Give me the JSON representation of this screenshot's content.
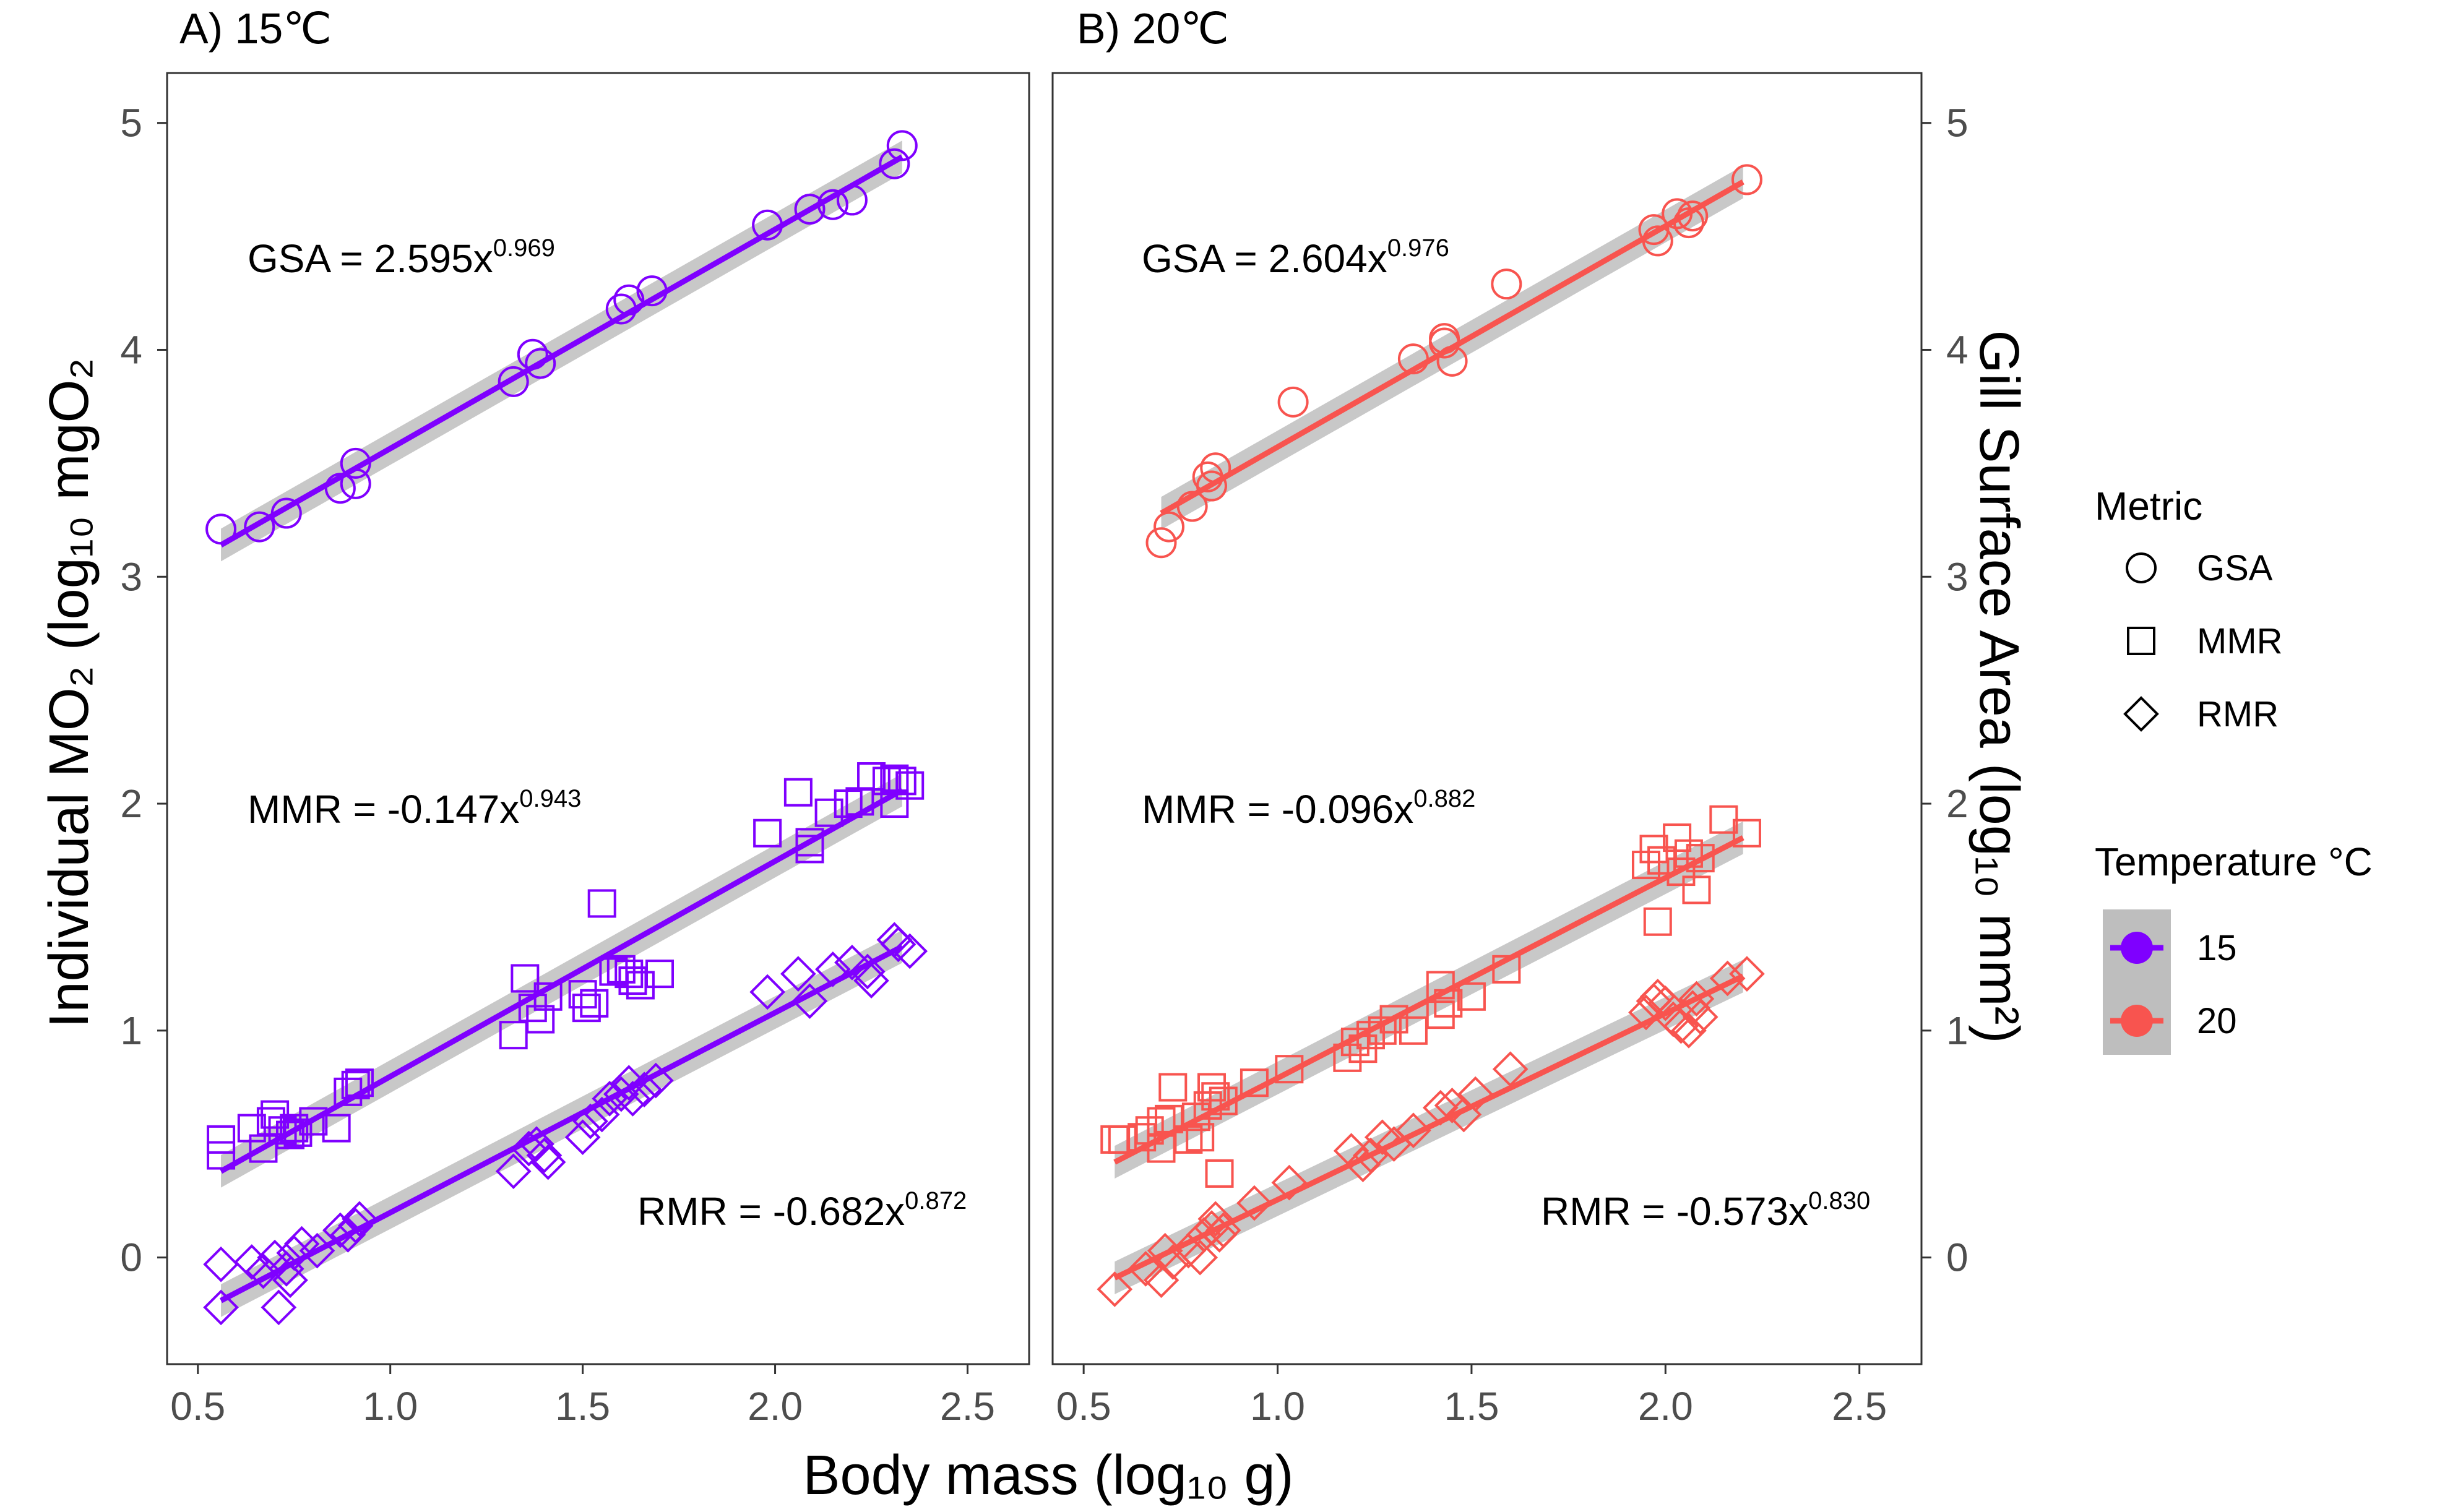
{
  "colors": {
    "t15": "#7F00FF",
    "t20": "#F8544F",
    "band": "#BEBEBE",
    "frame": "#333333"
  },
  "chart_data": {
    "type": "scatter",
    "xlabel": "Body mass (log₁₀ g)",
    "ylabel_left": "Individual MO₂ (log₁₀ mgO₂",
    "ylabel_right": "Gill Surface Area (log₁₀ mm²)",
    "xlim": [
      0.42,
      2.66
    ],
    "ylim": [
      -0.47,
      5.22
    ],
    "x_ticks": [
      "0.5",
      "1.0",
      "1.5",
      "2.0",
      "2.5"
    ],
    "y_ticks": [
      "0",
      "1",
      "2",
      "3",
      "4",
      "5"
    ],
    "legend": {
      "metric_title": "Metric",
      "metrics": [
        "GSA",
        "MMR",
        "RMR"
      ],
      "temp_title": "Temperature °C",
      "temps": [
        "15",
        "20"
      ]
    },
    "panels": [
      {
        "label": "A) 15℃",
        "temperature": "15",
        "equations": [
          {
            "base": "GSA = 2.595x",
            "exp": "0.969"
          },
          {
            "base": "MMR = -0.147x",
            "exp": "0.943"
          },
          {
            "base": "RMR = -0.682x",
            "exp": "0.872"
          }
        ],
        "series": [
          {
            "name": "GSA",
            "fit": {
              "x0": 0.56,
              "y0": 3.14,
              "x1": 2.33,
              "y1": 4.85
            },
            "points": [
              [
                0.56,
                3.21
              ],
              [
                0.66,
                3.22
              ],
              [
                0.73,
                3.28
              ],
              [
                0.87,
                3.39
              ],
              [
                0.91,
                3.41
              ],
              [
                0.91,
                3.5
              ],
              [
                1.32,
                3.86
              ],
              [
                1.37,
                3.98
              ],
              [
                1.39,
                3.94
              ],
              [
                1.6,
                4.18
              ],
              [
                1.62,
                4.22
              ],
              [
                1.68,
                4.26
              ],
              [
                1.98,
                4.55
              ],
              [
                2.09,
                4.62
              ],
              [
                2.15,
                4.64
              ],
              [
                2.2,
                4.66
              ],
              [
                2.31,
                4.82
              ],
              [
                2.33,
                4.9
              ]
            ]
          },
          {
            "name": "MMR",
            "fit": {
              "x0": 0.56,
              "y0": 0.38,
              "x1": 2.33,
              "y1": 2.06
            },
            "points": [
              [
                0.56,
                0.45
              ],
              [
                0.56,
                0.52
              ],
              [
                0.64,
                0.57
              ],
              [
                0.67,
                0.48
              ],
              [
                0.69,
                0.6
              ],
              [
                0.7,
                0.63
              ],
              [
                0.72,
                0.56
              ],
              [
                0.74,
                0.54
              ],
              [
                0.75,
                0.57
              ],
              [
                0.76,
                0.55
              ],
              [
                0.8,
                0.6
              ],
              [
                0.86,
                0.57
              ],
              [
                0.89,
                0.73
              ],
              [
                0.91,
                0.76
              ],
              [
                0.92,
                0.77
              ],
              [
                1.32,
                0.98
              ],
              [
                1.35,
                1.23
              ],
              [
                1.37,
                1.1
              ],
              [
                1.39,
                1.05
              ],
              [
                1.41,
                1.15
              ],
              [
                1.5,
                1.16
              ],
              [
                1.51,
                1.1
              ],
              [
                1.53,
                1.12
              ],
              [
                1.55,
                1.56
              ],
              [
                1.58,
                1.26
              ],
              [
                1.6,
                1.27
              ],
              [
                1.62,
                1.25
              ],
              [
                1.63,
                1.22
              ],
              [
                1.65,
                1.2
              ],
              [
                1.7,
                1.25
              ],
              [
                1.98,
                1.87
              ],
              [
                2.06,
                2.05
              ],
              [
                2.09,
                1.8
              ],
              [
                2.09,
                1.83
              ],
              [
                2.14,
                1.96
              ],
              [
                2.19,
                2.0
              ],
              [
                2.22,
                2.01
              ],
              [
                2.25,
                2.12
              ],
              [
                2.29,
                2.1
              ],
              [
                2.31,
                2.11
              ],
              [
                2.31,
                2.0
              ],
              [
                2.33,
                2.1
              ],
              [
                2.35,
                2.08
              ]
            ]
          },
          {
            "name": "RMR",
            "fit": {
              "x0": 0.56,
              "y0": -0.19,
              "x1": 2.33,
              "y1": 1.37
            },
            "points": [
              [
                0.56,
                -0.22
              ],
              [
                0.56,
                -0.03
              ],
              [
                0.64,
                -0.02
              ],
              [
                0.67,
                -0.06
              ],
              [
                0.7,
                0.0
              ],
              [
                0.71,
                -0.22
              ],
              [
                0.73,
                -0.05
              ],
              [
                0.74,
                -0.1
              ],
              [
                0.75,
                0.02
              ],
              [
                0.77,
                0.06
              ],
              [
                0.81,
                0.03
              ],
              [
                0.87,
                0.12
              ],
              [
                0.89,
                0.1
              ],
              [
                0.91,
                0.14
              ],
              [
                0.92,
                0.17
              ],
              [
                1.32,
                0.38
              ],
              [
                1.36,
                0.48
              ],
              [
                1.38,
                0.5
              ],
              [
                1.4,
                0.45
              ],
              [
                1.41,
                0.42
              ],
              [
                1.5,
                0.53
              ],
              [
                1.52,
                0.6
              ],
              [
                1.55,
                0.63
              ],
              [
                1.57,
                0.7
              ],
              [
                1.6,
                0.72
              ],
              [
                1.62,
                0.77
              ],
              [
                1.63,
                0.7
              ],
              [
                1.66,
                0.74
              ],
              [
                1.69,
                0.78
              ],
              [
                1.98,
                1.17
              ],
              [
                2.06,
                1.25
              ],
              [
                2.09,
                1.13
              ],
              [
                2.15,
                1.27
              ],
              [
                2.2,
                1.3
              ],
              [
                2.24,
                1.26
              ],
              [
                2.25,
                1.22
              ],
              [
                2.31,
                1.4
              ],
              [
                2.32,
                1.38
              ],
              [
                2.35,
                1.35
              ]
            ]
          }
        ]
      },
      {
        "label": "B) 20℃",
        "temperature": "20",
        "equations": [
          {
            "base": "GSA = 2.604x",
            "exp": "0.976"
          },
          {
            "base": "MMR = -0.096x",
            "exp": "0.882"
          },
          {
            "base": "RMR = -0.573x",
            "exp": "0.830"
          }
        ],
        "series": [
          {
            "name": "GSA",
            "fit": {
              "x0": 0.7,
              "y0": 3.28,
              "x1": 2.2,
              "y1": 4.74
            },
            "points": [
              [
                0.7,
                3.15
              ],
              [
                0.72,
                3.22
              ],
              [
                0.78,
                3.31
              ],
              [
                0.82,
                3.44
              ],
              [
                0.83,
                3.4
              ],
              [
                0.84,
                3.48
              ],
              [
                1.04,
                3.77
              ],
              [
                1.35,
                3.96
              ],
              [
                1.43,
                4.03
              ],
              [
                1.43,
                4.05
              ],
              [
                1.45,
                3.95
              ],
              [
                1.59,
                4.29
              ],
              [
                1.97,
                4.53
              ],
              [
                1.98,
                4.48
              ],
              [
                2.03,
                4.6
              ],
              [
                2.06,
                4.56
              ],
              [
                2.07,
                4.59
              ],
              [
                2.21,
                4.75
              ]
            ]
          },
          {
            "name": "MMR",
            "fit": {
              "x0": 0.58,
              "y0": 0.42,
              "x1": 2.2,
              "y1": 1.85
            },
            "points": [
              [
                0.58,
                0.52
              ],
              [
                0.6,
                0.52
              ],
              [
                0.65,
                0.53
              ],
              [
                0.67,
                0.56
              ],
              [
                0.7,
                0.48
              ],
              [
                0.7,
                0.6
              ],
              [
                0.72,
                0.61
              ],
              [
                0.73,
                0.75
              ],
              [
                0.77,
                0.52
              ],
              [
                0.79,
                0.62
              ],
              [
                0.8,
                0.53
              ],
              [
                0.82,
                0.67
              ],
              [
                0.83,
                0.75
              ],
              [
                0.84,
                0.71
              ],
              [
                0.85,
                0.37
              ],
              [
                0.86,
                0.69
              ],
              [
                0.94,
                0.77
              ],
              [
                1.03,
                0.83
              ],
              [
                1.18,
                0.88
              ],
              [
                1.2,
                0.95
              ],
              [
                1.22,
                0.92
              ],
              [
                1.24,
                0.98
              ],
              [
                1.27,
                1.0
              ],
              [
                1.3,
                1.05
              ],
              [
                1.35,
                1.0
              ],
              [
                1.42,
                1.07
              ],
              [
                1.42,
                1.2
              ],
              [
                1.44,
                1.12
              ],
              [
                1.5,
                1.15
              ],
              [
                1.59,
                1.27
              ],
              [
                1.95,
                1.73
              ],
              [
                1.97,
                1.8
              ],
              [
                1.98,
                1.48
              ],
              [
                1.99,
                1.75
              ],
              [
                2.03,
                1.85
              ],
              [
                2.04,
                1.7
              ],
              [
                2.06,
                1.78
              ],
              [
                2.08,
                1.62
              ],
              [
                2.09,
                1.76
              ],
              [
                2.15,
                1.93
              ],
              [
                2.21,
                1.87
              ]
            ]
          },
          {
            "name": "RMR",
            "fit": {
              "x0": 0.58,
              "y0": -0.09,
              "x1": 2.2,
              "y1": 1.24
            },
            "points": [
              [
                0.58,
                -0.14
              ],
              [
                0.66,
                -0.05
              ],
              [
                0.7,
                -0.1
              ],
              [
                0.71,
                0.03
              ],
              [
                0.73,
                -0.02
              ],
              [
                0.77,
                0.03
              ],
              [
                0.8,
                0.0
              ],
              [
                0.81,
                0.1
              ],
              [
                0.83,
                0.13
              ],
              [
                0.84,
                0.17
              ],
              [
                0.85,
                0.1
              ],
              [
                0.86,
                0.12
              ],
              [
                0.94,
                0.24
              ],
              [
                1.03,
                0.33
              ],
              [
                1.19,
                0.47
              ],
              [
                1.22,
                0.41
              ],
              [
                1.24,
                0.45
              ],
              [
                1.27,
                0.53
              ],
              [
                1.3,
                0.5
              ],
              [
                1.35,
                0.56
              ],
              [
                1.42,
                0.66
              ],
              [
                1.45,
                0.67
              ],
              [
                1.48,
                0.63
              ],
              [
                1.51,
                0.72
              ],
              [
                1.6,
                0.83
              ],
              [
                1.95,
                1.08
              ],
              [
                1.97,
                1.13
              ],
              [
                1.98,
                1.15
              ],
              [
                2.0,
                1.12
              ],
              [
                2.02,
                1.05
              ],
              [
                2.04,
                1.02
              ],
              [
                2.06,
                1.0
              ],
              [
                2.07,
                1.1
              ],
              [
                2.08,
                1.14
              ],
              [
                2.09,
                1.06
              ],
              [
                2.16,
                1.23
              ],
              [
                2.21,
                1.25
              ]
            ]
          }
        ]
      }
    ]
  }
}
